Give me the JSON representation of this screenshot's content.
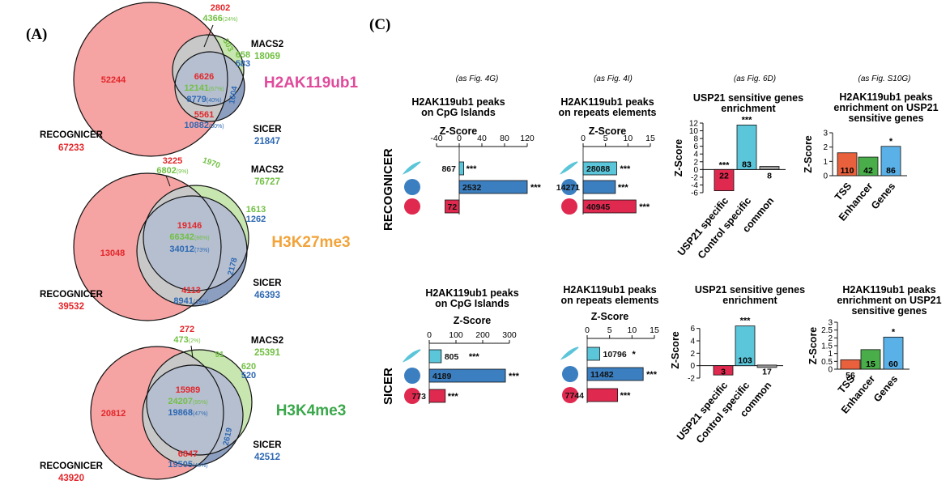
{
  "colors": {
    "recognicer": "#f5a3a3",
    "macs2": "#c8e6b0",
    "sicer": "#8d9fc0",
    "overlap": "#c8c8c8",
    "red_text": "#e3262a",
    "green_text": "#72c044",
    "blue_text": "#2f69b3",
    "pink_label": "#e04a9b",
    "orange_label": "#f2a33a",
    "green_label": "#3aa84b",
    "bar_cyan": "#5bc5d9",
    "bar_blue": "#3b7fc0",
    "bar_red": "#e0294f",
    "bar_tss": "#e8603c",
    "bar_enhancer": "#49ad4a",
    "bar_genes": "#5ab1e8",
    "bar_common": "#999999"
  },
  "panels": {
    "a": "(A)",
    "c": "(C)"
  },
  "venn": [
    {
      "mark": "H2AK119ub1",
      "mark_color": "#e04a9b",
      "rec_name": "RECOGNICER",
      "rec_total": "67233",
      "macs_name": "MACS2",
      "macs_total": "18069",
      "sicer_name": "SICER",
      "sicer_total": "21847",
      "rec_only": "52244",
      "top_red": "2802",
      "top_green": "4366",
      "top_green_pct": "(24%)",
      "macs_only": "303",
      "macs_sicer_green": "658",
      "macs_sicer_blue": "583",
      "c_red": "6626",
      "c_green": "12141",
      "c_green_pct": "(67%)",
      "c_blue": "8779",
      "c_blue_pct": "(40%)",
      "rs_red": "5561",
      "rs_blue": "10882",
      "rs_blue_pct": "(50%)",
      "sicer_only": "1604"
    },
    {
      "mark": "H3K27me3",
      "mark_color": "#f2a33a",
      "rec_name": "RECOGNICER",
      "rec_total": "39532",
      "macs_name": "MACS2",
      "macs_total": "76727",
      "sicer_name": "SICER",
      "sicer_total": "46393",
      "rec_only": "13048",
      "top_red": "3225",
      "top_green": "6802",
      "top_green_pct": "(9%)",
      "macs_only": "1970",
      "macs_sicer_green": "1613",
      "macs_sicer_blue": "1262",
      "c_red": "19146",
      "c_green": "66342",
      "c_green_pct": "(86%)",
      "c_blue": "34012",
      "c_blue_pct": "(73%)",
      "rs_red": "4113",
      "rs_blue": "8941",
      "rs_blue_pct": "(19%)",
      "sicer_only": "2178"
    },
    {
      "mark": "H3K4me3",
      "mark_color": "#3aa84b",
      "rec_name": "RECOGNICER",
      "rec_total": "43920",
      "macs_name": "MACS2",
      "macs_total": "25391",
      "sicer_name": "SICER",
      "sicer_total": "42512",
      "rec_only": "20812",
      "top_red": "272",
      "top_green": "473",
      "top_green_pct": "(2%)",
      "macs_only": "91",
      "macs_sicer_green": "620",
      "macs_sicer_blue": "520",
      "c_red": "15989",
      "c_green": "24207",
      "c_green_pct": "(95%)",
      "c_blue": "19868",
      "c_blue_pct": "(47%)",
      "rs_red": "6847",
      "rs_blue": "19505",
      "rs_blue_pct": "(46%)",
      "sicer_only": "2619"
    }
  ],
  "row_labels": [
    "RECOGNICER",
    "SICER"
  ],
  "col_refs": [
    "(as Fig. 4G)",
    "(as Fig. 4I)",
    "(as Fig. 6D)",
    "(as Fig. S10G)"
  ],
  "zscore_label": "Z-Score",
  "chart_data": [
    {
      "type": "bar",
      "row": "RECOGNICER",
      "orientation": "horizontal",
      "title": "H2AK119ub1 peaks on CpG Islands",
      "xlabel": "Z-Score",
      "xlim": [
        -40,
        130
      ],
      "xticks": [
        -40,
        0,
        40,
        80,
        120
      ],
      "values": [
        8,
        120,
        -25
      ],
      "labels": [
        "867",
        "2532",
        "72"
      ],
      "stars": [
        "***",
        "***",
        ""
      ],
      "colors": [
        "#5bc5d9",
        "#3b7fc0",
        "#e0294f"
      ]
    },
    {
      "type": "bar",
      "row": "RECOGNICER",
      "orientation": "horizontal",
      "title": "H2AK119ub1 peaks on repeats elements",
      "xlabel": "Z-Score",
      "xlim": [
        0,
        15
      ],
      "xticks": [
        0,
        5,
        10,
        15
      ],
      "values": [
        7.5,
        7.2,
        11.8
      ],
      "labels": [
        "28088",
        "14271",
        "40945"
      ],
      "stars": [
        "***",
        "***",
        "***"
      ],
      "colors": [
        "#5bc5d9",
        "#3b7fc0",
        "#e0294f"
      ]
    },
    {
      "type": "bar",
      "row": "RECOGNICER",
      "title": "USP21 sensitive genes enrichment",
      "ylabel": "Z-Score",
      "ylim": [
        -6,
        12
      ],
      "yticks": [
        -6,
        -4,
        -2,
        0,
        2,
        4,
        6,
        8,
        10,
        12
      ],
      "categories": [
        "USP21 specific",
        "Control specific",
        "common"
      ],
      "values": [
        -5.5,
        11.5,
        0.8
      ],
      "labels": [
        "22",
        "83",
        "8"
      ],
      "stars": [
        "***",
        "***",
        ""
      ],
      "colors": [
        "#e0294f",
        "#5bc5d9",
        "#999999"
      ]
    },
    {
      "type": "bar",
      "row": "RECOGNICER",
      "title": "H2AK119ub1 peaks enrichment on USP21 sensitive genes",
      "ylabel": "Z-Score",
      "ylim": [
        0,
        3
      ],
      "yticks": [
        0,
        1,
        2,
        3
      ],
      "categories": [
        "TSS",
        "Enhancer",
        "Genes"
      ],
      "values": [
        1.6,
        1.3,
        2.05
      ],
      "labels": [
        "110",
        "42",
        "86"
      ],
      "stars": [
        "",
        "",
        "*"
      ],
      "colors": [
        "#e8603c",
        "#49ad4a",
        "#5ab1e8"
      ]
    },
    {
      "type": "bar",
      "row": "SICER",
      "orientation": "horizontal",
      "title": "H2AK119ub1 peaks on CpG Islands",
      "xlabel": "Z-Score",
      "xlim": [
        0,
        300
      ],
      "xticks": [
        0,
        100,
        200,
        300
      ],
      "values": [
        45,
        285,
        60
      ],
      "labels": [
        "805",
        "4189",
        "773"
      ],
      "stars": [
        "***",
        "***",
        "***"
      ],
      "colors": [
        "#5bc5d9",
        "#3b7fc0",
        "#e0294f"
      ]
    },
    {
      "type": "bar",
      "row": "SICER",
      "orientation": "horizontal",
      "title": "H2AK119ub1 peaks on repeats elements",
      "xlabel": "Z-Score",
      "xlim": [
        0,
        15
      ],
      "xticks": [
        0,
        5,
        10,
        15
      ],
      "values": [
        2.8,
        12.5,
        6.8
      ],
      "labels": [
        "10796",
        "11482",
        "7744"
      ],
      "stars": [
        "*",
        "***",
        "***"
      ],
      "colors": [
        "#5bc5d9",
        "#3b7fc0",
        "#e0294f"
      ]
    },
    {
      "type": "bar",
      "row": "SICER",
      "title": "USP21 sensitive genes enrichment",
      "ylabel": "Z-Score",
      "ylim": [
        -2,
        7
      ],
      "yticks": [
        -2,
        0,
        2,
        4,
        6
      ],
      "categories": [
        "USP21 specific",
        "Control specific",
        "common"
      ],
      "values": [
        -1.5,
        6.4,
        0.1
      ],
      "labels": [
        "3",
        "103",
        "17"
      ],
      "stars": [
        "",
        "***",
        ""
      ],
      "colors": [
        "#e0294f",
        "#5bc5d9",
        "#999999"
      ]
    },
    {
      "type": "bar",
      "row": "SICER",
      "title": "H2AK119ub1 peaks enrichment on USP21 sensitive genes",
      "ylabel": "Z-Score",
      "ylim": [
        0,
        3
      ],
      "yticks": [
        0,
        0.5,
        1,
        1.5,
        2,
        2.5,
        3
      ],
      "ytick_labels": [
        "0",
        "0.5",
        "1",
        "1.5",
        "2",
        "2.5",
        "3"
      ],
      "categories": [
        "TSS",
        "Enhancer",
        "Genes"
      ],
      "values": [
        0.6,
        1.25,
        2.05
      ],
      "labels": [
        "56",
        "15",
        "60"
      ],
      "stars": [
        "",
        "",
        "*"
      ],
      "colors": [
        "#e8603c",
        "#49ad4a",
        "#5ab1e8"
      ]
    }
  ]
}
